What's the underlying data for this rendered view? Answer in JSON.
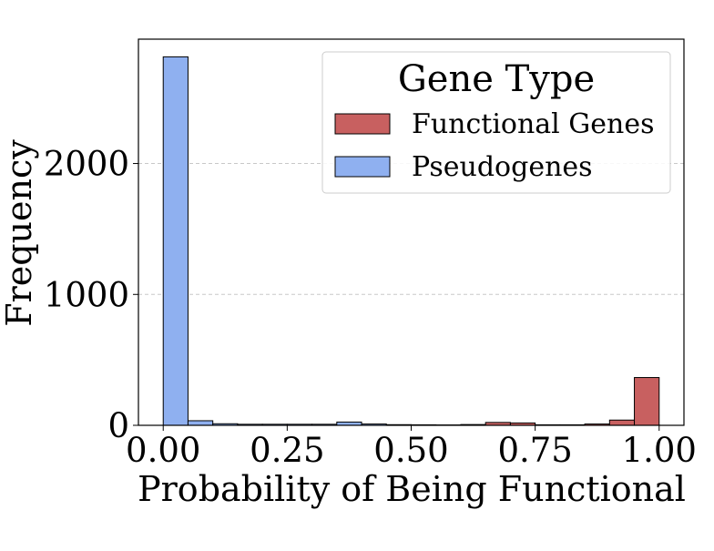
{
  "chart_data": {
    "type": "bar",
    "xlabel": "Probability of Being Functional",
    "ylabel": "Frequency",
    "xlim": [
      -0.05,
      1.05
    ],
    "ylim": [
      0,
      2950
    ],
    "xticks": [
      0.0,
      0.25,
      0.5,
      0.75,
      1.0
    ],
    "xtick_labels": [
      "0.00",
      "0.25",
      "0.50",
      "0.75",
      "1.00"
    ],
    "yticks": [
      0,
      1000,
      2000
    ],
    "ytick_labels": [
      "0",
      "1000",
      "2000"
    ],
    "grid": "y-dashed",
    "legend": {
      "title": "Gene Type",
      "placement": "top-right",
      "entries": [
        "Functional Genes",
        "Pseudogenes"
      ]
    },
    "bin_edges": [
      0.0,
      0.05,
      0.1,
      0.15,
      0.2,
      0.25,
      0.3,
      0.35,
      0.4,
      0.45,
      0.5,
      0.55,
      0.6,
      0.65,
      0.7,
      0.75,
      0.8,
      0.85,
      0.9,
      0.95,
      1.0
    ],
    "series": [
      {
        "name": "Pseudogenes",
        "color": "#8fb0f0",
        "values": [
          2815,
          35,
          12,
          8,
          8,
          8,
          8,
          25,
          10,
          5,
          4,
          3,
          3,
          3,
          3,
          3,
          2,
          2,
          8,
          3
        ]
      },
      {
        "name": "Functional Genes",
        "color": "#c86060",
        "values": [
          0,
          0,
          0,
          0,
          0,
          0,
          0,
          0,
          0,
          0,
          0,
          0,
          6,
          22,
          18,
          4,
          4,
          10,
          40,
          365
        ]
      }
    ]
  }
}
